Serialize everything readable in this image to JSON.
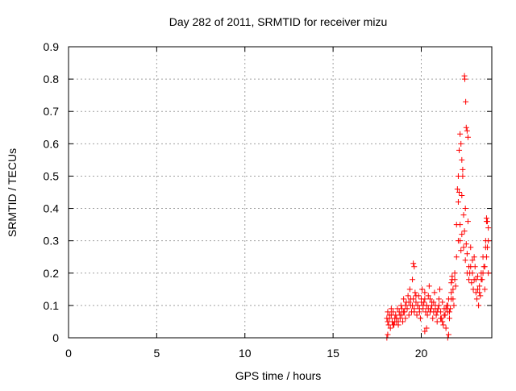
{
  "chart_data": {
    "type": "scatter",
    "title": "Day 282 of 2011, SRMTID for receiver mizu",
    "xlabel": "GPS time / hours",
    "ylabel": "SRMTID / TECUs",
    "xlim": [
      0,
      24
    ],
    "ylim": [
      0,
      0.9
    ],
    "xticks": [
      0,
      5,
      10,
      15,
      20
    ],
    "xtick_labels": [
      "0",
      "5",
      "10",
      "15",
      "20"
    ],
    "yticks": [
      0,
      0.1,
      0.2,
      0.3,
      0.4,
      0.5,
      0.6,
      0.7,
      0.8,
      0.9
    ],
    "ytick_labels": [
      "0",
      "0.1",
      "0.2",
      "0.3",
      "0.4",
      "0.5",
      "0.6",
      "0.7",
      "0.8",
      "0.9"
    ],
    "grid": true,
    "marker": "+",
    "color": "#ff0000",
    "series": [
      {
        "name": "SRMTID",
        "x": [
          18.05,
          18.1,
          18.15,
          18.2,
          18.25,
          18.3,
          18.35,
          18.4,
          18.45,
          18.5,
          18.55,
          18.6,
          18.65,
          18.7,
          18.75,
          18.8,
          18.85,
          18.9,
          18.95,
          19.0,
          19.05,
          19.1,
          19.15,
          19.2,
          19.25,
          19.3,
          19.35,
          19.4,
          19.45,
          19.5,
          19.55,
          19.6,
          19.65,
          19.7,
          19.75,
          19.8,
          19.85,
          19.9,
          19.95,
          20.0,
          20.05,
          20.1,
          20.15,
          20.2,
          20.25,
          20.3,
          20.35,
          20.4,
          20.45,
          20.5,
          20.55,
          20.6,
          20.65,
          20.7,
          20.75,
          20.8,
          20.85,
          20.9,
          20.95,
          21.0,
          21.05,
          21.1,
          21.15,
          21.2,
          21.25,
          21.3,
          21.35,
          21.4,
          21.45,
          21.5,
          21.55,
          21.6,
          21.65,
          21.7,
          21.75,
          21.8,
          21.85,
          21.9,
          21.95,
          22.0,
          22.05,
          22.1,
          22.15,
          22.2,
          22.25,
          22.3,
          22.35,
          22.4,
          22.45,
          22.5,
          22.55,
          22.6,
          22.65,
          22.7,
          22.75,
          22.8,
          22.85,
          22.9,
          22.95,
          23.0,
          23.05,
          23.1,
          23.15,
          23.2,
          23.25,
          23.3,
          23.35,
          23.4,
          23.45,
          23.5,
          23.55,
          23.6,
          23.65,
          23.7,
          23.75,
          23.8,
          18.1,
          18.2,
          18.3,
          18.4,
          18.5,
          18.6,
          18.7,
          18.8,
          18.9,
          19.0,
          19.1,
          19.2,
          19.3,
          19.4,
          19.5,
          19.6,
          19.7,
          19.8,
          19.9,
          20.0,
          20.1,
          20.2,
          20.3,
          20.4,
          20.5,
          20.6,
          20.7,
          20.8,
          20.9,
          21.0,
          21.1,
          21.2,
          21.3,
          21.4,
          21.5,
          21.6,
          21.7,
          21.8,
          21.9,
          22.0,
          22.1,
          22.2,
          22.3,
          22.4,
          22.5,
          22.6,
          22.7,
          22.8,
          22.9,
          23.0,
          23.1,
          23.2,
          23.3,
          23.4,
          23.5,
          23.6,
          23.7,
          23.8,
          22.45,
          22.47,
          22.52,
          22.55,
          22.2,
          22.25,
          22.3,
          22.35,
          22.1,
          22.15,
          19.55,
          19.6,
          21.7,
          21.75,
          23.7,
          23.75,
          23.8,
          23.65,
          18.05,
          18.1,
          20.2,
          20.3,
          21.5,
          21.55,
          22.6,
          22.65
        ],
        "y": [
          0.06,
          0.08,
          0.04,
          0.07,
          0.03,
          0.09,
          0.05,
          0.08,
          0.04,
          0.06,
          0.07,
          0.05,
          0.09,
          0.04,
          0.08,
          0.06,
          0.1,
          0.07,
          0.05,
          0.12,
          0.08,
          0.06,
          0.11,
          0.09,
          0.13,
          0.07,
          0.15,
          0.1,
          0.08,
          0.18,
          0.12,
          0.09,
          0.14,
          0.11,
          0.07,
          0.1,
          0.13,
          0.08,
          0.06,
          0.12,
          0.15,
          0.09,
          0.11,
          0.14,
          0.08,
          0.1,
          0.07,
          0.13,
          0.16,
          0.12,
          0.09,
          0.11,
          0.06,
          0.08,
          0.14,
          0.1,
          0.07,
          0.05,
          0.09,
          0.12,
          0.15,
          0.08,
          0.06,
          0.11,
          0.04,
          0.09,
          0.07,
          0.03,
          0.1,
          0.08,
          0.12,
          0.06,
          0.09,
          0.14,
          0.18,
          0.12,
          0.1,
          0.2,
          0.16,
          0.35,
          0.46,
          0.42,
          0.58,
          0.3,
          0.27,
          0.44,
          0.5,
          0.38,
          0.33,
          0.4,
          0.29,
          0.26,
          0.36,
          0.22,
          0.2,
          0.28,
          0.17,
          0.24,
          0.15,
          0.18,
          0.22,
          0.14,
          0.12,
          0.19,
          0.1,
          0.16,
          0.13,
          0.2,
          0.18,
          0.25,
          0.22,
          0.15,
          0.3,
          0.36,
          0.28,
          0.2,
          0.05,
          0.06,
          0.07,
          0.04,
          0.05,
          0.06,
          0.05,
          0.07,
          0.09,
          0.08,
          0.1,
          0.09,
          0.11,
          0.12,
          0.1,
          0.08,
          0.13,
          0.1,
          0.09,
          0.11,
          0.1,
          0.12,
          0.1,
          0.09,
          0.08,
          0.1,
          0.11,
          0.09,
          0.08,
          0.1,
          0.06,
          0.05,
          0.07,
          0.09,
          0.1,
          0.08,
          0.12,
          0.15,
          0.18,
          0.25,
          0.3,
          0.35,
          0.32,
          0.28,
          0.24,
          0.2,
          0.18,
          0.22,
          0.2,
          0.25,
          0.18,
          0.15,
          0.14,
          0.18,
          0.2,
          0.22,
          0.25,
          0.3,
          0.81,
          0.8,
          0.73,
          0.65,
          0.63,
          0.6,
          0.55,
          0.52,
          0.5,
          0.45,
          0.23,
          0.22,
          0.17,
          0.19,
          0.37,
          0.36,
          0.34,
          0.28,
          0.0,
          0.01,
          0.02,
          0.03,
          0.0,
          0.01,
          0.64,
          0.62
        ]
      }
    ]
  }
}
